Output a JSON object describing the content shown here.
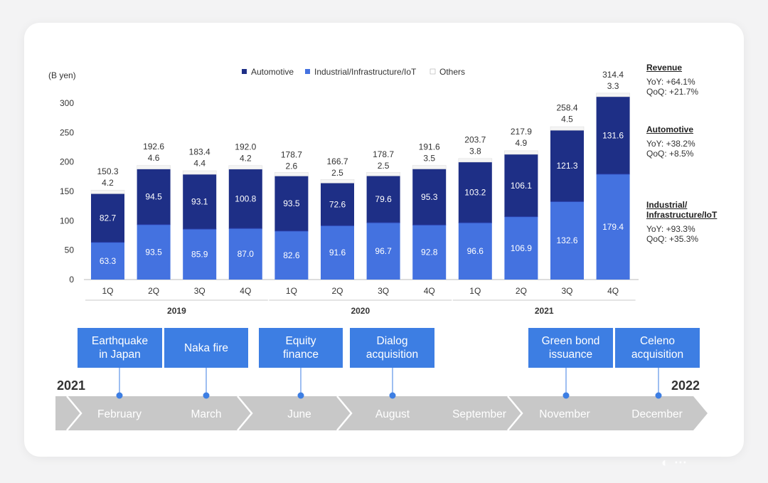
{
  "chart_data": {
    "type": "bar",
    "stacked": true,
    "ylabel": "(B yen)",
    "ylim": [
      0,
      300
    ],
    "yticks": [
      0,
      50,
      100,
      150,
      200,
      250,
      300
    ],
    "categories": [
      "1Q",
      "2Q",
      "3Q",
      "4Q",
      "1Q",
      "2Q",
      "3Q",
      "4Q",
      "1Q",
      "2Q",
      "3Q",
      "4Q"
    ],
    "groups": [
      {
        "label": "2019",
        "from": 0,
        "to": 3
      },
      {
        "label": "2020",
        "from": 4,
        "to": 7
      },
      {
        "label": "2021",
        "from": 8,
        "to": 11
      }
    ],
    "legend": [
      "Automotive",
      "Industrial/Infrastructure/IoT",
      "Others"
    ],
    "legend_position": "top",
    "series": [
      {
        "name": "Industrial/Infrastructure/IoT",
        "color": "#4472e0",
        "values": [
          63.3,
          93.5,
          85.9,
          87.0,
          82.6,
          91.6,
          96.7,
          92.8,
          96.6,
          106.9,
          132.6,
          179.4
        ],
        "labels": [
          "63.3",
          "93.5",
          "85.9",
          "87.0",
          "82.6",
          "91.6",
          "96.7",
          "92.8",
          "96.6",
          "106.9",
          "132.6",
          "179.4"
        ]
      },
      {
        "name": "Automotive",
        "color": "#1e2f86",
        "values": [
          82.7,
          94.5,
          93.1,
          100.8,
          93.5,
          72.6,
          79.6,
          95.3,
          103.2,
          106.1,
          121.3,
          131.6
        ],
        "labels": [
          "82.7",
          "94.5",
          "93.1",
          "100.8",
          "93.5",
          "72.6",
          "79.6",
          "95.3",
          "103.2",
          "106.1",
          "121.3",
          "131.6"
        ]
      },
      {
        "name": "Others",
        "color": "#f4f4f4",
        "values": [
          4.2,
          4.6,
          4.4,
          4.2,
          2.6,
          2.5,
          2.5,
          3.5,
          3.8,
          4.9,
          4.5,
          3.3
        ],
        "labels": [
          "4.2",
          "4.6",
          "4.4",
          "4.2",
          "2.6",
          "2.5",
          "2.5",
          "3.5",
          "3.8",
          "4.9",
          "4.5",
          "3.3"
        ]
      }
    ],
    "totals": [
      "150.3",
      "192.6",
      "183.4",
      "192.0",
      "178.7",
      "166.7",
      "178.7",
      "191.6",
      "203.7",
      "217.9",
      "258.4",
      "314.4"
    ]
  },
  "side_panel": {
    "revenue": {
      "title": "Revenue",
      "yoy": "YoY: +64.1%",
      "qoq": "QoQ: +21.7%"
    },
    "automotive": {
      "title": "Automotive",
      "yoy": "YoY: +38.2%",
      "qoq": "QoQ: +8.5%"
    },
    "industrial": {
      "title": "Industrial/\nInfrastructure/IoT",
      "yoy": "YoY: +93.3%",
      "qoq": "QoQ: +35.3%"
    }
  },
  "timeline": {
    "start_year": "2021",
    "end_year": "2022",
    "events": [
      "Earthquake\nin Japan",
      "Naka fire",
      "Equity\nfinance",
      "Dialog\nacquisition",
      "Green bond\nissuance",
      "Celeno\nacquisition"
    ],
    "months": [
      "February",
      "March",
      "June",
      "August",
      "September",
      "November",
      "December"
    ],
    "colors": {
      "event_box": "#3d7ee3",
      "arrow": "#c8c8c8",
      "dot": "#3d7ee3"
    }
  }
}
